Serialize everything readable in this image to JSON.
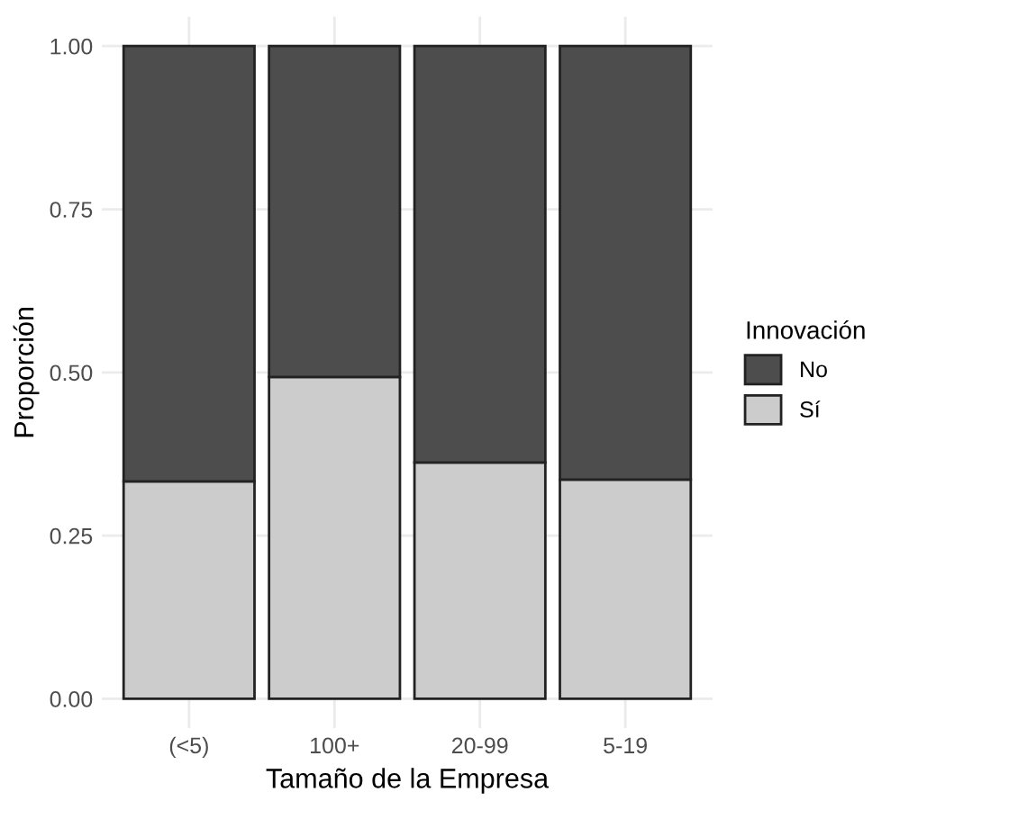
{
  "chart_data": {
    "type": "bar",
    "stacked": true,
    "xlabel": "Tamaño de la Empresa",
    "ylabel": "Proporción",
    "legend_title": "Innovación",
    "categories": [
      "(<5)",
      "100+",
      "20-99",
      "5-19"
    ],
    "series": [
      {
        "name": "Sí",
        "color": "#cccccc",
        "values": [
          0.333,
          0.493,
          0.362,
          0.336
        ]
      },
      {
        "name": "No",
        "color": "#4d4d4d",
        "values": [
          0.667,
          0.507,
          0.638,
          0.664
        ]
      }
    ],
    "ylim": [
      -0.045,
      1.045
    ],
    "yticks": [
      {
        "value": 0,
        "label": "0.00"
      },
      {
        "value": 0.25,
        "label": "0.25"
      },
      {
        "value": 0.5,
        "label": "0.50"
      },
      {
        "value": 0.75,
        "label": "0.75"
      },
      {
        "value": 1,
        "label": "1.00"
      }
    ],
    "grid": true,
    "legend": "right"
  }
}
